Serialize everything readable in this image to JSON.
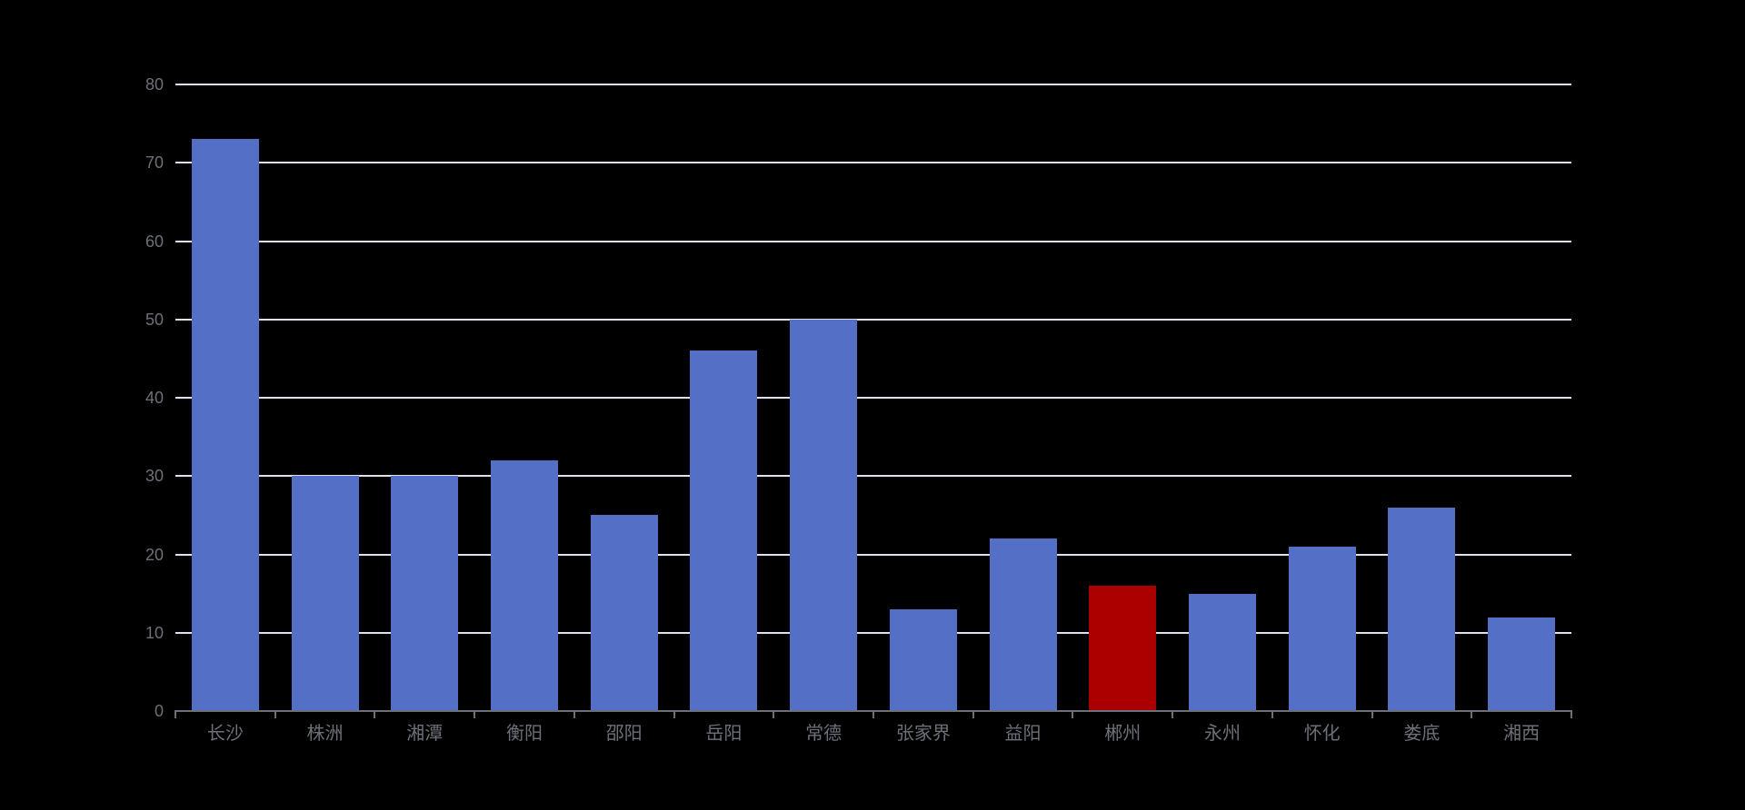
{
  "chart_data": {
    "type": "bar",
    "title": "",
    "xlabel": "",
    "ylabel": "",
    "categories": [
      "长沙",
      "株洲",
      "湘潭",
      "衡阳",
      "邵阳",
      "岳阳",
      "常德",
      "张家界",
      "益阳",
      "郴州",
      "永州",
      "怀化",
      "娄底",
      "湘西"
    ],
    "values": [
      73,
      30,
      30,
      32,
      25,
      46,
      50,
      13,
      22,
      16,
      15,
      21,
      26,
      12
    ],
    "highlight_index": 9,
    "highlight_category": "郴州",
    "ylim": [
      0,
      80
    ],
    "yticks": [
      0,
      10,
      20,
      30,
      40,
      50,
      60,
      70,
      80
    ],
    "grid": true,
    "legend": false,
    "colors": {
      "background": "#000000",
      "bar": "#5470C6",
      "highlight_bar": "#AA0000",
      "grid_line": "#DDE2EE",
      "axis_line": "#6E7079",
      "axis_label": "#6E7079"
    }
  }
}
